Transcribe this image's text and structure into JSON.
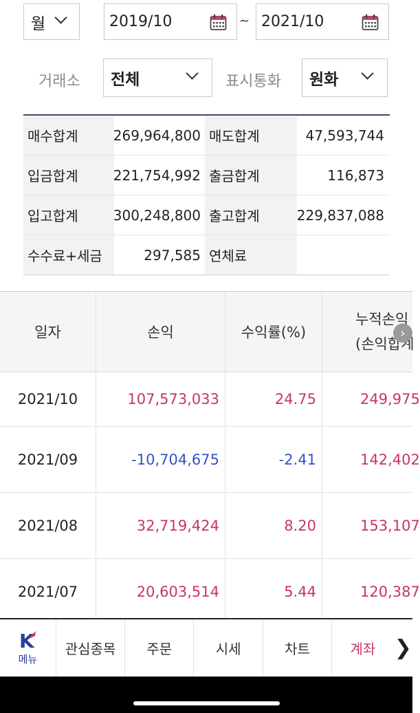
{
  "filters": {
    "period": "월",
    "date_from": "2019/10",
    "date_separator": "~",
    "date_to": "2021/10",
    "exchange_label": "거래소",
    "exchange_value": "전체",
    "currency_label": "표시통화",
    "currency_value": "원화"
  },
  "summary": [
    {
      "label1": "매수합계",
      "value1": "269,964,800",
      "label2": "매도합계",
      "value2": "47,593,744"
    },
    {
      "label1": "입금합계",
      "value1": "221,754,992",
      "label2": "출금합계",
      "value2": "116,873"
    },
    {
      "label1": "입고합계",
      "value1": "300,248,800",
      "label2": "출고합계",
      "value2": "229,837,088"
    },
    {
      "label1": "수수료+세금",
      "value1": "297,585",
      "label2": "연체료",
      "value2": ""
    }
  ],
  "history": {
    "headers": {
      "date": "일자",
      "profit": "손익",
      "rate": "수익률(%)",
      "cumulative_line1": "누적손익",
      "cumulative_line2": "(손익합계"
    },
    "rows": [
      {
        "date": "2021/10",
        "profit": "107,573,033",
        "rate": "24.75",
        "cumulative": "249,975"
      },
      {
        "date": "2021/09",
        "profit": "-10,704,675",
        "rate": "-2.41",
        "cumulative": "142,402"
      },
      {
        "date": "2021/08",
        "profit": "32,719,424",
        "rate": "8.20",
        "cumulative": "153,107"
      },
      {
        "date": "2021/07",
        "profit": "20,603,514",
        "rate": "5.44",
        "cumulative": "120,387"
      }
    ]
  },
  "nav": {
    "logo": "K",
    "menu": "메뉴",
    "watchlist": "관심종목",
    "order": "주문",
    "market": "시세",
    "chart": "차트",
    "account": "계좌",
    "more": "❯"
  },
  "colors": {
    "positive": "#c8336b",
    "negative": "#3552c4",
    "accent": "#2b3f9c"
  }
}
